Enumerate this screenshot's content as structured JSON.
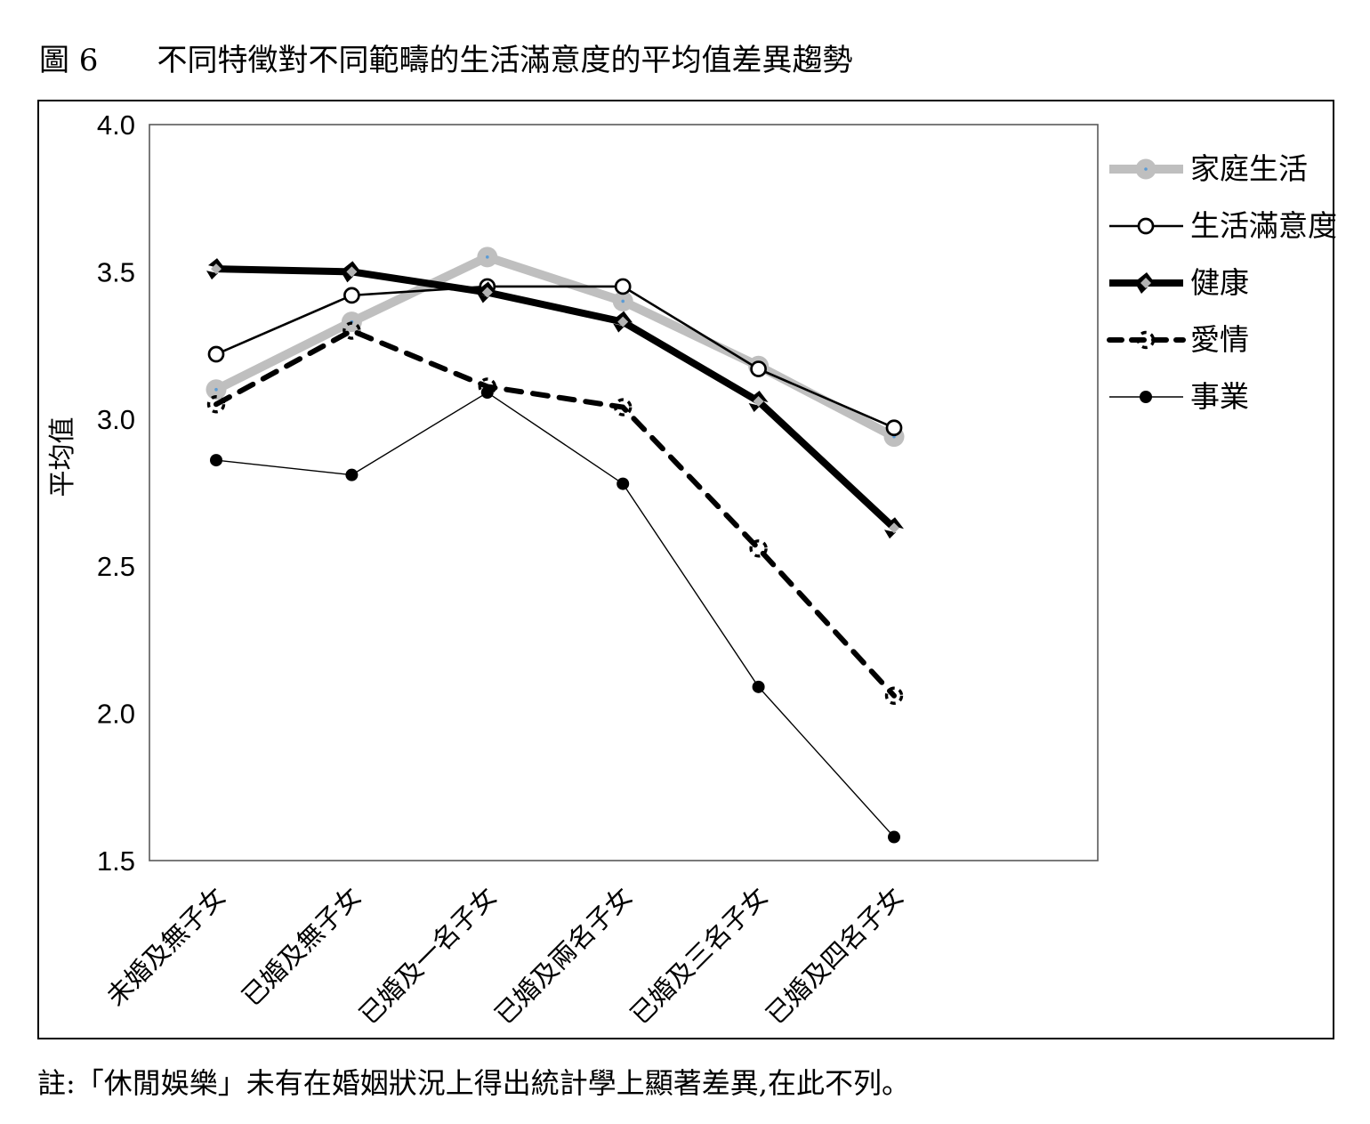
{
  "page": {
    "title_prefix": "圖 6",
    "title": "不同特徵對不同範疇的生活滿意度的平均值差異趨勢",
    "note": "註:「休閒娛樂」未有在婚姻狀況上得出統計學上顯著差異,在此不列。"
  },
  "chart_data": {
    "type": "line",
    "title": "不同特徵對不同範疇的生活滿意度的平均值差異趨勢",
    "xlabel": "",
    "ylabel": "平均值",
    "ylim": [
      1.5,
      4.0
    ],
    "yticks": [
      4.0,
      3.5,
      3.0,
      2.5,
      2.0,
      1.5
    ],
    "ytick_labels": [
      "4.0",
      "3.5",
      "3.0",
      "2.5",
      "2.0",
      "1.5"
    ],
    "grid": false,
    "legend_position": "right",
    "categories": [
      "未婚及無子女",
      "已婚及無子女",
      "已婚及一名子女",
      "已婚及兩名子女",
      "已婚及三名子女",
      "已婚及四名子女"
    ],
    "series": [
      {
        "name": "家庭生活",
        "values": [
          3.1,
          3.33,
          3.55,
          3.4,
          3.18,
          2.94
        ],
        "color": "#bfbfbf",
        "line_width": 10,
        "dash": "solid",
        "marker": "circle-gray"
      },
      {
        "name": "生活滿意度",
        "values": [
          3.22,
          3.42,
          3.45,
          3.45,
          3.17,
          2.97
        ],
        "color": "#000000",
        "line_width": 2.6,
        "dash": "solid",
        "marker": "circle-open"
      },
      {
        "name": "健康",
        "values": [
          3.51,
          3.5,
          3.43,
          3.33,
          3.06,
          2.63
        ],
        "color": "#000000",
        "line_width": 8,
        "dash": "solid",
        "marker": "pinwheel"
      },
      {
        "name": "愛情",
        "values": [
          3.05,
          3.3,
          3.11,
          3.04,
          2.56,
          2.06
        ],
        "color": "#000000",
        "line_width": 6,
        "dash": "dashed",
        "marker": "circle-dashed"
      },
      {
        "name": "事業",
        "values": [
          2.86,
          2.81,
          3.09,
          2.78,
          2.09,
          1.58
        ],
        "color": "#000000",
        "line_width": 1.4,
        "dash": "solid",
        "marker": "circle-filled"
      }
    ],
    "marker_colors": {
      "gray_fill": "#bfbfbf",
      "center_dot": "#5b9bd5",
      "pinwheel_center": "#b3b3b3",
      "plot_border": "#595959"
    }
  }
}
